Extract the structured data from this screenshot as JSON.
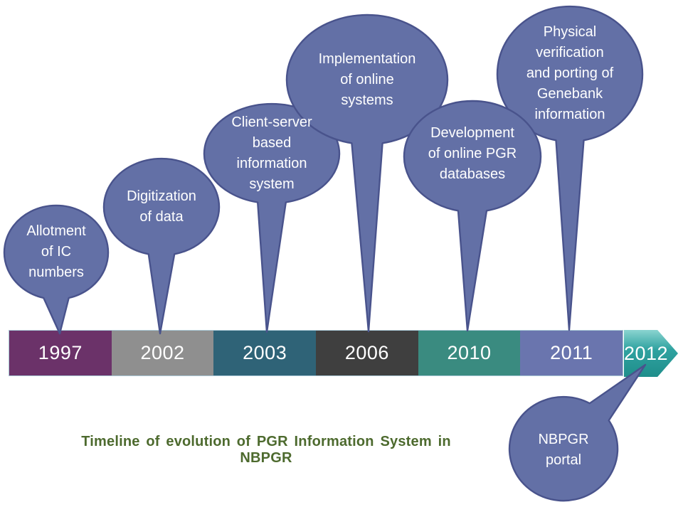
{
  "caption": {
    "text": "Timeline of evolution of PGR Information System in NBPGR",
    "color": "#4d6a2e"
  },
  "balloon_style": {
    "fill": "#6370a6",
    "stroke": "#49538c",
    "text_color": "#ffffff"
  },
  "balloons": [
    {
      "text": "Allotment\nof IC\nnumbers",
      "points_to": "1997"
    },
    {
      "text": "Digitization\nof data",
      "points_to": "2002"
    },
    {
      "text": "Client-server\nbased\ninformation\nsystem",
      "points_to": "2003"
    },
    {
      "text": "Implementation\nof online\nsystems",
      "points_to": "2006"
    },
    {
      "text": "Development\nof online PGR\ndatabases",
      "points_to": "2010"
    },
    {
      "text": "Physical\nverification\nand porting of\nGenebank\ninformation",
      "points_to": "2011"
    },
    {
      "text": "NBPGR\nportal",
      "points_to": "2012"
    }
  ],
  "timeline": {
    "segments": [
      {
        "year": "1997",
        "color": "#6b3269"
      },
      {
        "year": "2002",
        "color": "#8f8f8f"
      },
      {
        "year": "2003",
        "color": "#2f6377"
      },
      {
        "year": "2006",
        "color": "#3f3f3f"
      },
      {
        "year": "2010",
        "color": "#3a8b80"
      },
      {
        "year": "2011",
        "color": "#6a75ae"
      }
    ],
    "arrow": {
      "year": "2012",
      "color": "#2fa2a0",
      "color_top": "#8ad4d0",
      "color_bottom": "#1f8e8b"
    }
  }
}
